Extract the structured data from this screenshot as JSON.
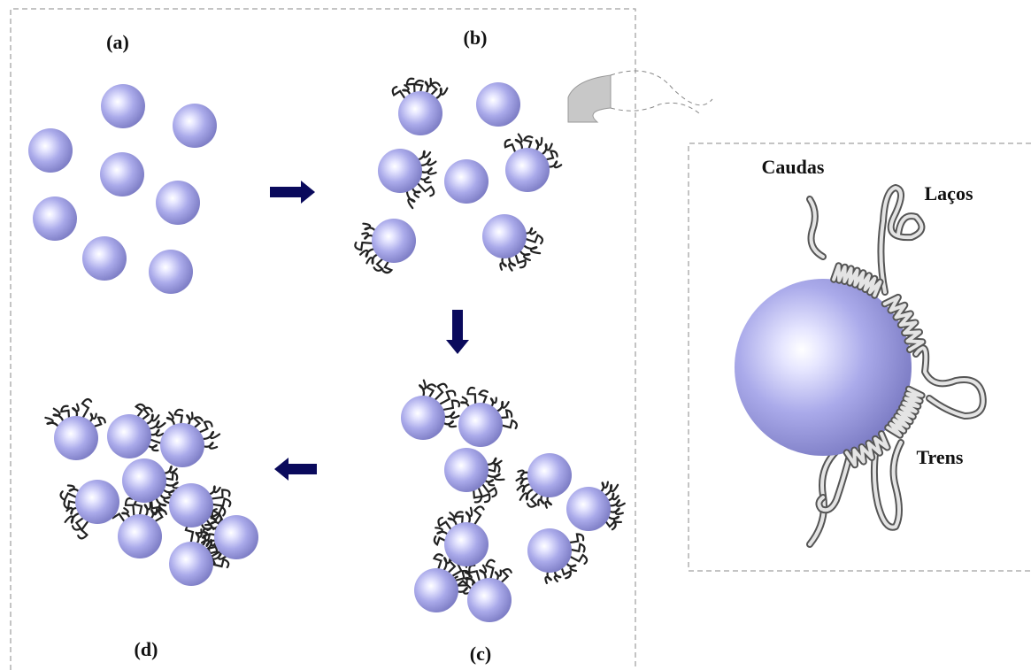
{
  "panels": [
    {
      "label": "(a)"
    },
    {
      "label": "(b)"
    },
    {
      "label": "(c)"
    },
    {
      "label": "(d)"
    }
  ],
  "inset": {
    "tails": "Caudas",
    "loops": "Laços",
    "trains": "Trens"
  }
}
